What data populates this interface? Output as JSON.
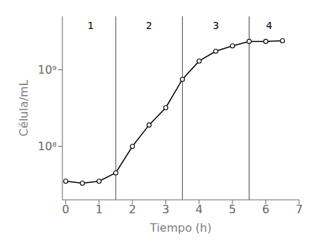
{
  "chart_data": {
    "type": "line",
    "xlabel": "Tiempo (h)",
    "ylabel": "Célula/mL",
    "x": [
      0,
      0.5,
      1.0,
      1.5,
      2.0,
      2.5,
      3.0,
      3.5,
      4.0,
      4.5,
      5.0,
      5.5,
      6.0,
      6.5
    ],
    "values": [
      35000000.0,
      33000000.0,
      35000000.0,
      45000000.0,
      100000000.0,
      190000000.0,
      320000000.0,
      750000000.0,
      1300000000.0,
      1750000000.0,
      2050000000.0,
      2350000000.0,
      2350000000.0,
      2400000000.0
    ],
    "color": "#000000",
    "marker": "circle",
    "log": "y",
    "grid": false,
    "xlim": [
      -0.1,
      7.0
    ],
    "ylim": [
      20000000.0,
      5000000000.0
    ],
    "xticks": [
      0,
      1,
      2,
      3,
      4,
      5,
      6,
      7
    ],
    "yticks": [
      {
        "value": 100000000.0,
        "label": "10⁸"
      },
      {
        "value": 1000000000.0,
        "label": "10⁹"
      }
    ],
    "reference_lines": [
      {
        "x": 1.5,
        "color": "#444444"
      },
      {
        "x": 3.5,
        "color": "#444444"
      },
      {
        "x": 5.5,
        "color": "#444444"
      }
    ],
    "annotations": [
      {
        "text": "1",
        "x": 0.75
      },
      {
        "text": "2",
        "x": 2.5
      },
      {
        "text": "3",
        "x": 4.5
      },
      {
        "text": "4",
        "x": 6.1
      }
    ]
  }
}
